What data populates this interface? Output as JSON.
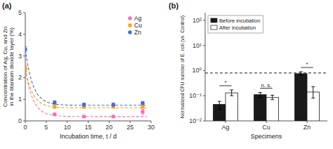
{
  "chart_data": [
    {
      "type": "scatter",
      "title": "(a)",
      "xlabel": "Incubation time, t / d",
      "ylabel": "Concentration of Ag, Cu, and Zn\nin the titanium dioxide layer (%)",
      "xlim": [
        0,
        30
      ],
      "ylim": [
        0,
        5
      ],
      "xticks": [
        0,
        5,
        10,
        15,
        20,
        25,
        30
      ],
      "yticks": [
        0,
        1,
        2,
        3,
        4,
        5
      ],
      "legend": "upper right",
      "series": [
        {
          "name": "Ag",
          "type": "scatter",
          "color": "#FF69B4",
          "marker": "circle",
          "x": [
            0,
            7,
            14,
            21,
            28
          ],
          "values": [
            2.4,
            0.3,
            0.2,
            0.2,
            0.42
          ],
          "yerr": [
            0.15,
            0.06,
            0.05,
            0.05,
            0.12
          ]
        },
        {
          "name": "Cu",
          "type": "scatter",
          "color": "#FFA500",
          "marker": "square",
          "x": [
            0,
            7,
            14,
            21,
            28
          ],
          "values": [
            2.4,
            0.65,
            0.65,
            0.65,
            0.65
          ],
          "yerr": [
            0.1,
            0.06,
            0.06,
            0.05,
            0.05
          ]
        },
        {
          "name": "Zn",
          "type": "scatter",
          "color": "#4169E1",
          "marker": "circle",
          "x": [
            0,
            7,
            14,
            21,
            28
          ],
          "values": [
            3.3,
            0.85,
            0.75,
            0.75,
            0.82
          ],
          "yerr": [
            0.12,
            0.08,
            0.07,
            0.07,
            0.07
          ]
        },
        {
          "type": "line",
          "line_style": "dashed",
          "color": "#FF69B4",
          "x": [
            0,
            0.5,
            1,
            1.5,
            2,
            2.5,
            3,
            4,
            5,
            6,
            8,
            10,
            12,
            15,
            20,
            25,
            29
          ],
          "values": [
            2.4,
            1.8664,
            1.4623,
            1.1561,
            0.9242,
            0.7486,
            0.6155,
            0.4384,
            0.3368,
            0.2785,
            0.2258,
            0.2085,
            0.2028,
            0.2005,
            0.2,
            0.2,
            0.2
          ]
        },
        {
          "type": "line",
          "line_style": "dashed",
          "color": "#FFA500",
          "x": [
            0,
            0.5,
            1,
            1.5,
            2,
            2.5,
            3,
            4,
            5,
            6,
            8,
            10,
            12,
            15,
            20,
            25,
            29
          ],
          "values": [
            2.4,
            1.9634,
            1.6328,
            1.3823,
            1.1925,
            1.0488,
            0.94,
            0.7951,
            0.7119,
            0.6642,
            0.6211,
            0.607,
            0.6023,
            0.6004,
            0.6,
            0.6,
            0.6
          ]
        },
        {
          "type": "line",
          "line_style": "dashed",
          "color": "#4169E1",
          "x": [
            0,
            0.5,
            1,
            1.5,
            2,
            2.5,
            3,
            4,
            5,
            6,
            8,
            10,
            12,
            15,
            20,
            25,
            29
          ],
          "values": [
            3.3,
            2.6743,
            2.2003,
            1.8413,
            1.5693,
            1.3633,
            1.2073,
            0.9996,
            0.8804,
            0.812,
            0.7503,
            0.73,
            0.7233,
            0.7206,
            0.72,
            0.72,
            0.72
          ]
        }
      ]
    },
    {
      "type": "bar",
      "title": "(b)",
      "xlabel": "Specimens",
      "ylabel": "Normalized CFU number of E. coli (vs. Control)",
      "categories": [
        "Ag",
        "Cu",
        "Zn"
      ],
      "log": "y",
      "ylim": [
        0.01,
        200
      ],
      "yticks": [
        {
          "value": 0.01,
          "label": "10⁻²"
        },
        {
          "value": 0.1,
          "label": "10⁻¹"
        },
        {
          "value": 1,
          "label": "10⁰"
        },
        {
          "value": 10,
          "label": "10¹"
        },
        {
          "value": 100,
          "label": "10²"
        }
      ],
      "legend": "upper left",
      "series": [
        {
          "name": "Before incubation",
          "color": "#1a1a1a",
          "values": [
            0.045,
            0.11,
            0.75
          ],
          "err_low": [
            0.015,
            0.025,
            0.1
          ],
          "err_high": [
            0.015,
            0.025,
            0.15
          ]
        },
        {
          "name": "After incubation",
          "color": "#ffffff",
          "values": [
            0.13,
            0.085,
            0.14
          ],
          "err_low": [
            0.03,
            0.015,
            0.06
          ],
          "err_high": [
            0.04,
            0.02,
            0.09
          ]
        }
      ],
      "hline": 0.8,
      "annotations": [
        "*",
        "n. s.",
        "*"
      ]
    }
  ]
}
